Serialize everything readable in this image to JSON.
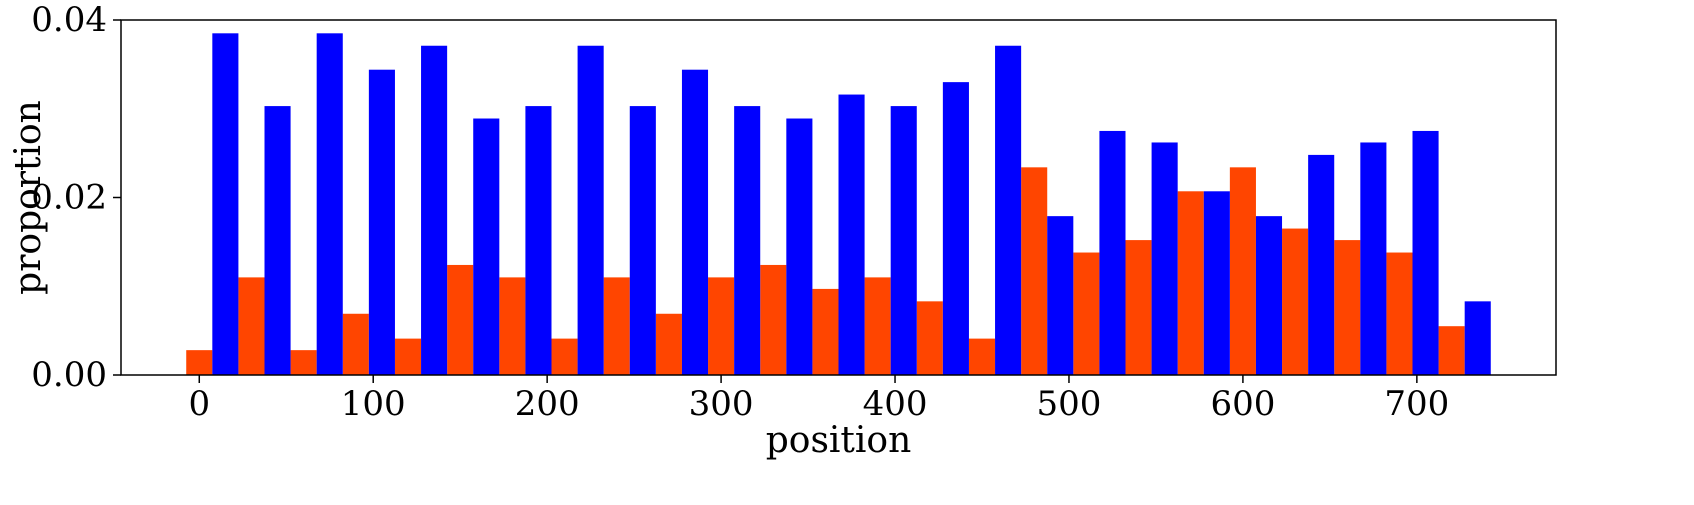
{
  "chart_data": {
    "type": "bar",
    "title": "",
    "xlabel": "position",
    "ylabel": "proportion",
    "xlim": [
      -45,
      780
    ],
    "ylim": [
      0,
      0.04
    ],
    "x_ticks": [
      0,
      100,
      200,
      300,
      400,
      500,
      600,
      700
    ],
    "x_tick_labels": [
      "0",
      "100",
      "200",
      "300",
      "400",
      "500",
      "600",
      "700"
    ],
    "y_ticks": [
      0,
      0.02,
      0.04
    ],
    "y_tick_labels": [
      "0.00",
      "0.02",
      "0.04"
    ],
    "bar_width": 15,
    "grid": false,
    "legend": "none",
    "series": [
      {
        "color": "#ff4500",
        "x": [
          0,
          30,
          60,
          90,
          120,
          150,
          180,
          210,
          240,
          270,
          300,
          330,
          360,
          390,
          420,
          450,
          480,
          510,
          540,
          570,
          600,
          630,
          660,
          690,
          720
        ],
        "values": [
          0.0028,
          0.011,
          0.0028,
          0.0069,
          0.0041,
          0.0124,
          0.011,
          0.0041,
          0.011,
          0.0069,
          0.011,
          0.0124,
          0.0097,
          0.011,
          0.0083,
          0.0041,
          0.0234,
          0.0138,
          0.0152,
          0.0207,
          0.0234,
          0.0165,
          0.0152,
          0.0138,
          0.0055
        ]
      },
      {
        "color": "#0000ff",
        "x": [
          15,
          45,
          75,
          105,
          135,
          165,
          195,
          225,
          255,
          285,
          315,
          345,
          375,
          405,
          435,
          465,
          495,
          525,
          555,
          585,
          615,
          645,
          675,
          705,
          735
        ],
        "values": [
          0.0385,
          0.0303,
          0.0385,
          0.0344,
          0.0371,
          0.0289,
          0.0303,
          0.0371,
          0.0303,
          0.0344,
          0.0303,
          0.0289,
          0.0316,
          0.0303,
          0.033,
          0.0371,
          0.0179,
          0.0275,
          0.0262,
          0.0207,
          0.0179,
          0.0248,
          0.0262,
          0.0275,
          0.0083
        ]
      }
    ]
  }
}
